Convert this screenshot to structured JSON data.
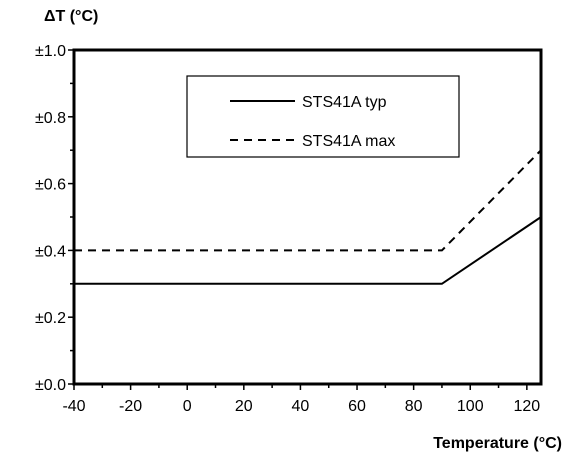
{
  "chart_data": {
    "type": "line",
    "xlabel": "Temperature (°C)",
    "ylabel": "ΔT (°C)",
    "xlim": [
      -40,
      125
    ],
    "ylim": [
      0,
      1.0
    ],
    "x_ticks": [
      -40,
      -20,
      0,
      20,
      40,
      60,
      80,
      100,
      120
    ],
    "y_ticks": [
      0.0,
      0.2,
      0.4,
      0.6,
      0.8,
      1.0
    ],
    "y_tick_labels": [
      "±0.0",
      "±0.2",
      "±0.4",
      "±0.6",
      "±0.8",
      "±1.0"
    ],
    "grid": false,
    "legend_position": "top-center",
    "series": [
      {
        "name": "STS41A typ",
        "style": "solid",
        "color": "#000000",
        "points": [
          [
            -40,
            0.3
          ],
          [
            90,
            0.3
          ],
          [
            125,
            0.5
          ]
        ]
      },
      {
        "name": "STS41A max",
        "style": "dashed",
        "color": "#000000",
        "points": [
          [
            -40,
            0.4
          ],
          [
            90,
            0.4
          ],
          [
            125,
            0.7
          ]
        ]
      }
    ]
  }
}
